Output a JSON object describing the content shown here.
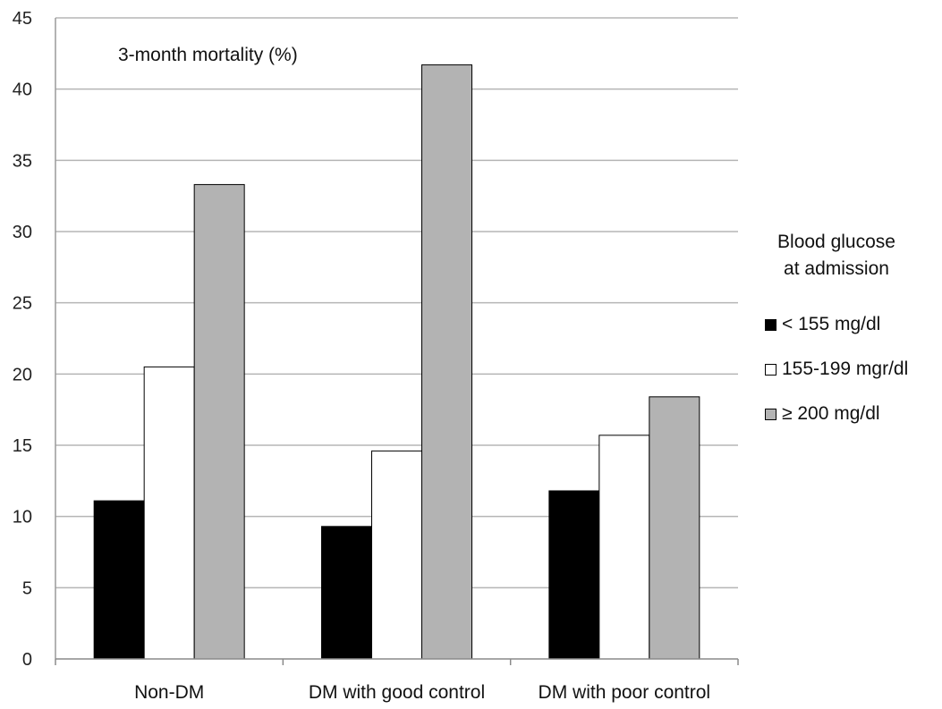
{
  "chart_data": {
    "type": "bar",
    "categories": [
      "Non-DM",
      "DM with good control",
      "DM with poor control"
    ],
    "series": [
      {
        "name": "< 155 mg/dl",
        "color": "#000000",
        "values": [
          11.1,
          9.3,
          11.8
        ]
      },
      {
        "name": "155-199 mgr/dl",
        "color": "#ffffff",
        "values": [
          20.5,
          14.6,
          15.7
        ]
      },
      {
        "name": "≥ 200 mg/dl",
        "color": "#b3b3b3",
        "values": [
          33.3,
          41.7,
          18.4
        ]
      }
    ],
    "annotation": "3-month mortality (%)",
    "legend_title_line1": "Blood glucose",
    "legend_title_line2": "at admission",
    "ylim": [
      0,
      45
    ],
    "yticks": [
      0,
      5,
      10,
      15,
      20,
      25,
      30,
      35,
      40,
      45
    ],
    "grid": true,
    "legend_position": "right"
  }
}
